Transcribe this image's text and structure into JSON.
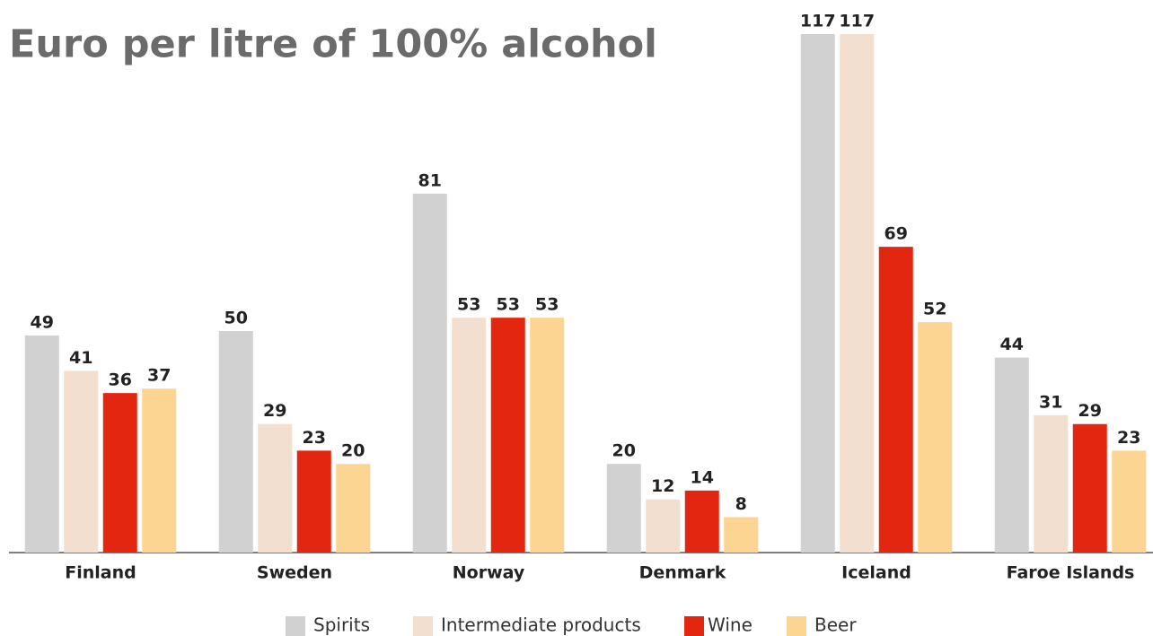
{
  "chart_data": {
    "type": "bar",
    "title": "Euro per litre of 100% alcohol",
    "categories": [
      "Finland",
      "Sweden",
      "Norway",
      "Denmark",
      "Iceland",
      "Faroe Islands"
    ],
    "series": [
      {
        "name": "Spirits",
        "color": "#d1d1d1",
        "values": [
          49,
          50,
          81,
          20,
          117,
          44
        ]
      },
      {
        "name": "Intermediate products",
        "color": "#f2dfd0",
        "values": [
          41,
          29,
          53,
          12,
          117,
          31
        ]
      },
      {
        "name": "Wine",
        "color": "#e3260f",
        "values": [
          36,
          23,
          53,
          14,
          69,
          29
        ]
      },
      {
        "name": "Beer",
        "color": "#fdd592",
        "values": [
          37,
          20,
          53,
          8,
          52,
          23
        ]
      }
    ],
    "ylim": [
      0,
      117
    ]
  }
}
